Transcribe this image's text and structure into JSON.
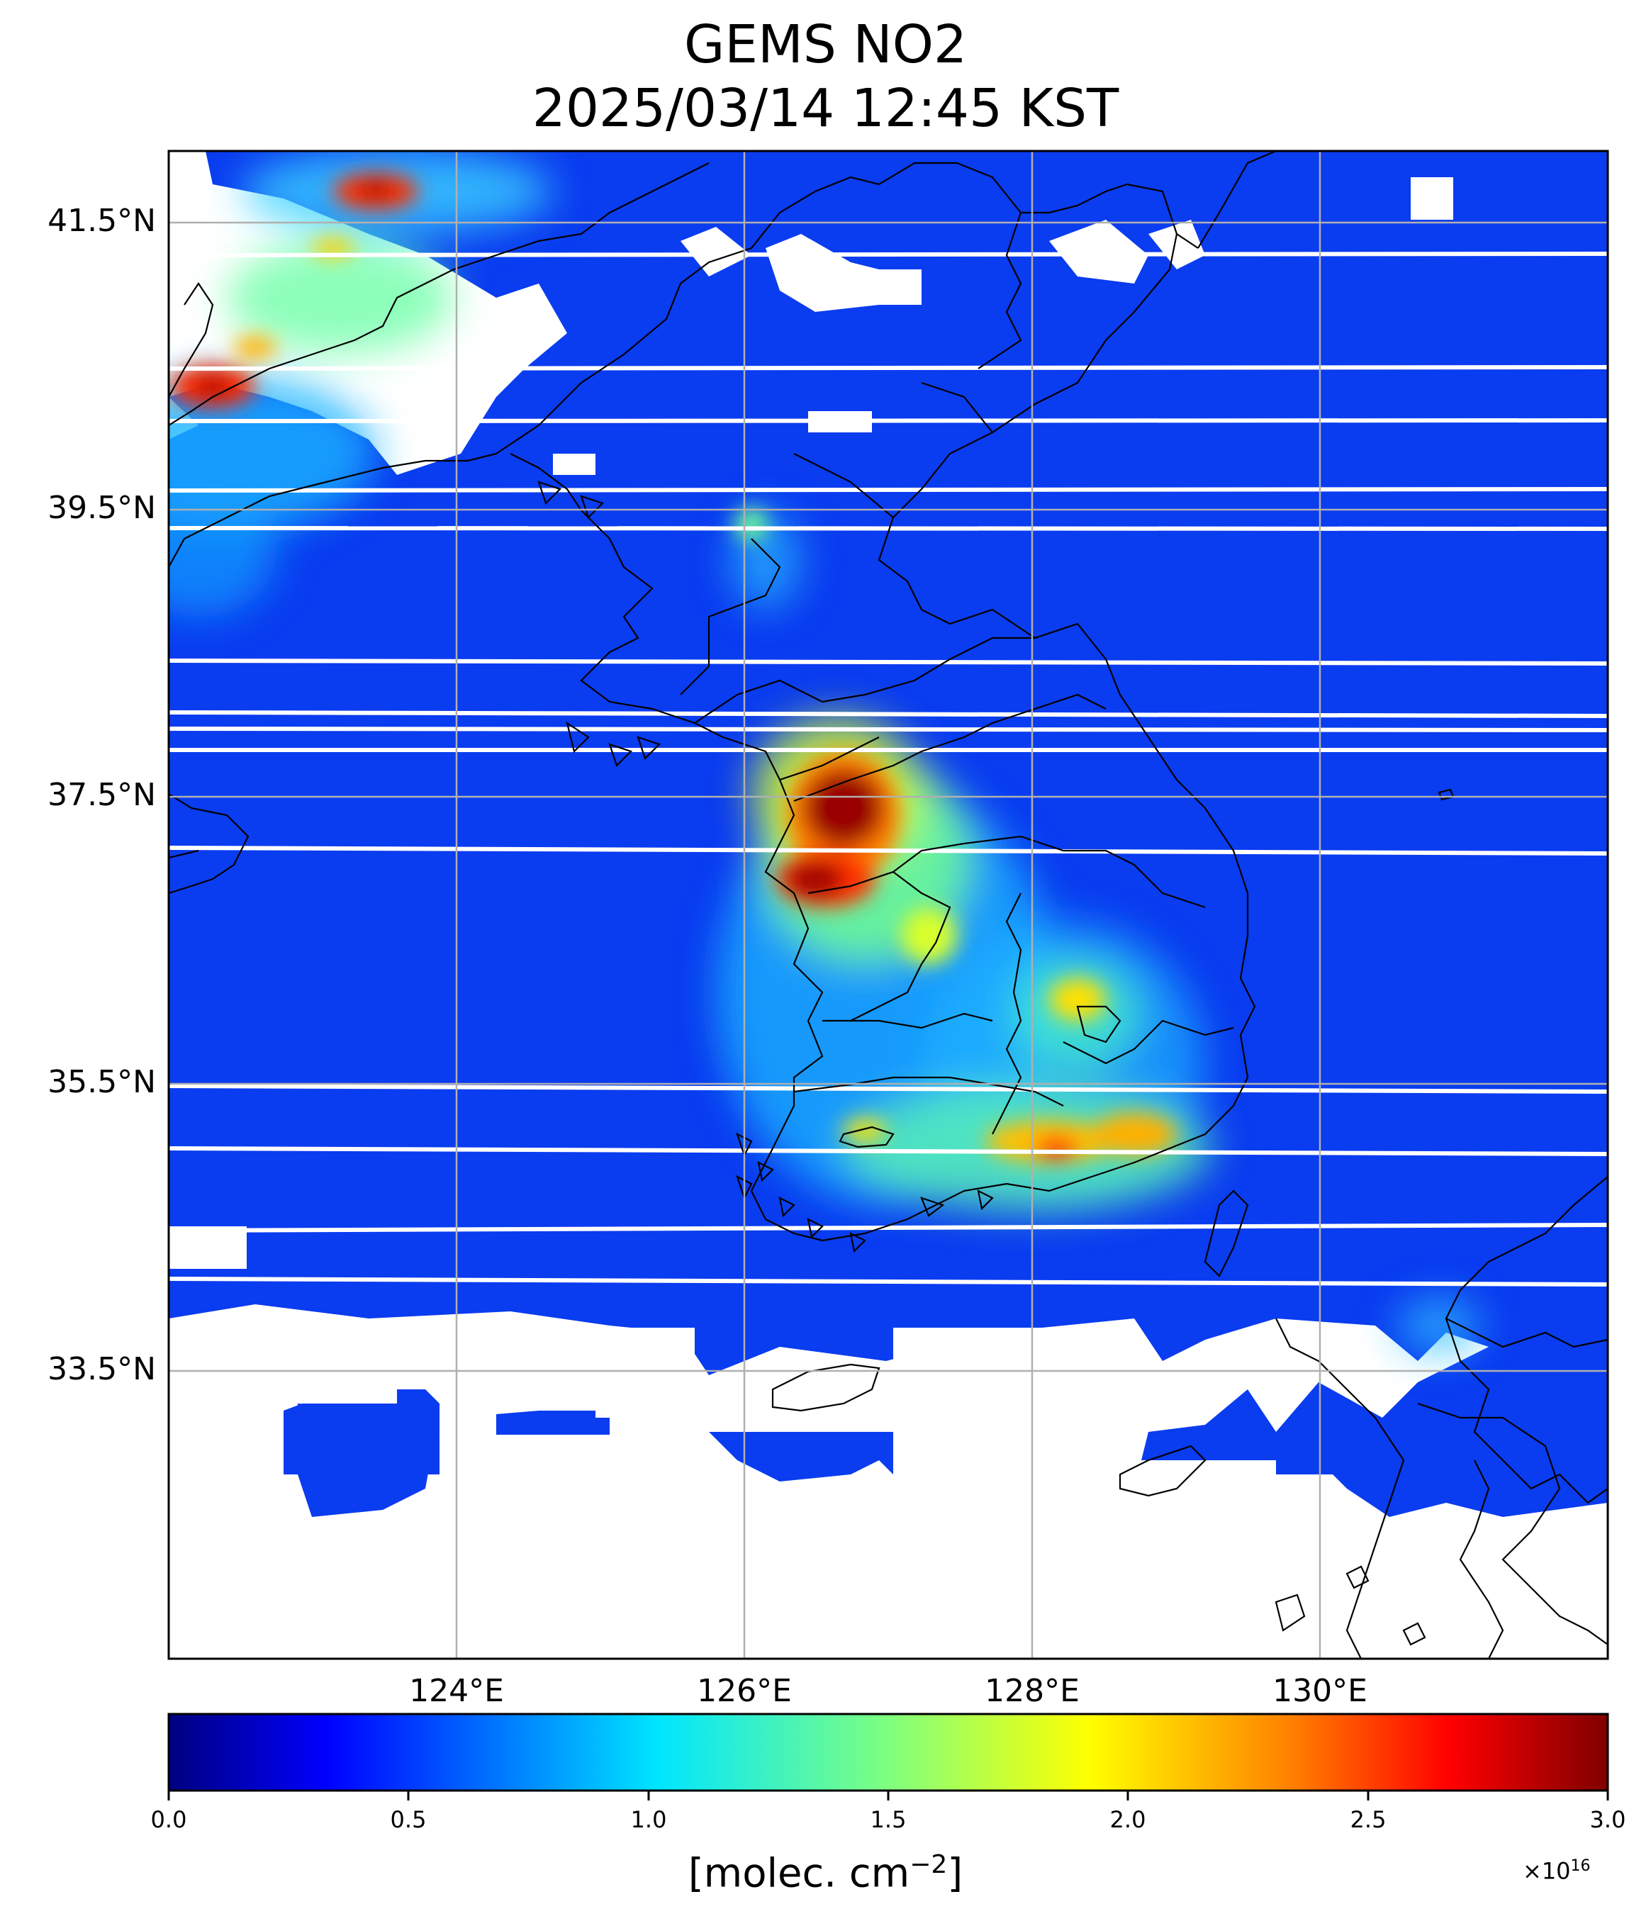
{
  "title": {
    "line1": "GEMS NO2",
    "line2": "2025/03/14 12:45 KST"
  },
  "map": {
    "lon_range": [
      122.0,
      132.0
    ],
    "lat_range": [
      31.5,
      42.0
    ],
    "x_ticks": [
      {
        "lon": 124,
        "label": "124°E"
      },
      {
        "lon": 126,
        "label": "126°E"
      },
      {
        "lon": 128,
        "label": "128°E"
      },
      {
        "lon": 130,
        "label": "130°E"
      }
    ],
    "y_ticks": [
      {
        "lat": 41.5,
        "label": "41.5°N"
      },
      {
        "lat": 39.5,
        "label": "39.5°N"
      },
      {
        "lat": 37.5,
        "label": "37.5°N"
      },
      {
        "lat": 35.5,
        "label": "35.5°N"
      },
      {
        "lat": 33.5,
        "label": "33.5°N"
      }
    ],
    "grid": true,
    "colormap": "jet",
    "hotspots": [
      {
        "name": "Seoul metropolitan area",
        "lon": 126.8,
        "lat": 37.45,
        "value": 3.0
      },
      {
        "name": "Gyeonggi south",
        "lon": 126.7,
        "lat": 37.1,
        "value": 2.7
      },
      {
        "name": "Daegu",
        "lon": 128.6,
        "lat": 35.85,
        "value": 2.1
      },
      {
        "name": "Busan/Changwon",
        "lon": 128.3,
        "lat": 35.2,
        "value": 2.2
      },
      {
        "name": "Liaoning coast",
        "lon": 122.3,
        "lat": 40.4,
        "value": 2.6
      },
      {
        "name": "Liaoning north",
        "lon": 123.5,
        "lat": 41.7,
        "value": 2.5
      }
    ]
  },
  "colorbar": {
    "min": 0.0,
    "max": 3.0,
    "ticks": [
      "0.0",
      "0.5",
      "1.0",
      "1.5",
      "2.0",
      "2.5",
      "3.0"
    ],
    "label_main": "[molec. cm",
    "label_exp": "−2",
    "label_tail": "]",
    "scale_prefix": "×10",
    "scale_exp": "16",
    "colors": {
      "dark_blue": "#00007f",
      "blue": "#0000ff",
      "cyan": "#00e5ff",
      "green": "#7fff7f",
      "yellow": "#ffff00",
      "orange": "#ff8000",
      "red": "#ff0000",
      "dark_red": "#7f0000"
    }
  }
}
